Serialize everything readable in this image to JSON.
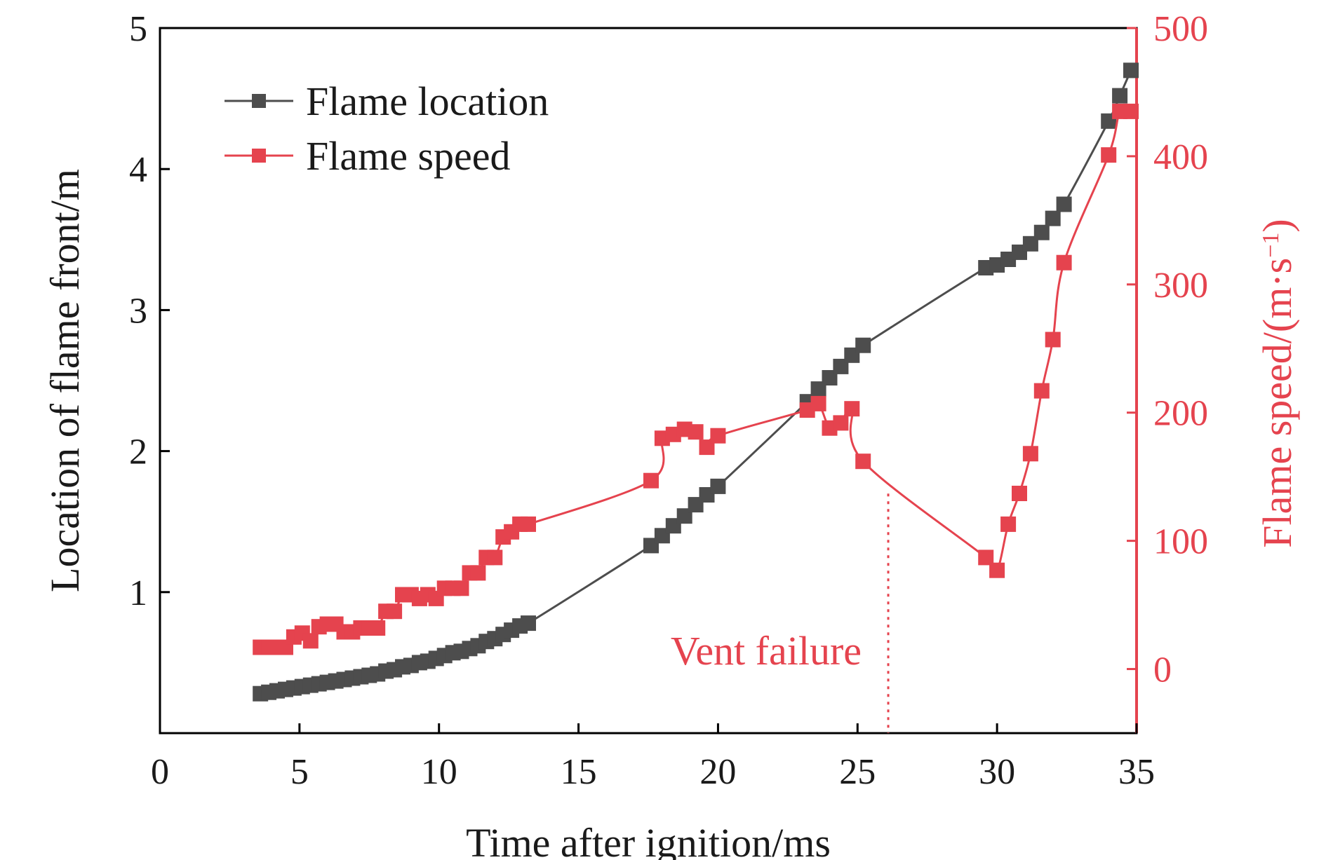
{
  "chart_data": {
    "type": "line",
    "xlabel": "Time after ignition/ms",
    "ylabel_left": "Location of flame front/m",
    "ylabel_right_main": "Flame speed/(m·s",
    "ylabel_right_sup": "−1",
    "ylabel_right_close": ")",
    "xlim": [
      0,
      35
    ],
    "ylim_left": [
      0,
      5
    ],
    "ylim_right": [
      -50,
      500
    ],
    "x_ticks": [
      0,
      5,
      10,
      15,
      20,
      25,
      30,
      35
    ],
    "y_ticks_left": [
      1,
      2,
      3,
      4,
      5
    ],
    "y_ticks_right": [
      0,
      100,
      200,
      300,
      400,
      500
    ],
    "grid": false,
    "legend_placement": "top-left",
    "colors": {
      "location": "#4d4d4d",
      "speed": "#e5434e",
      "axis_left": "#000000",
      "axis_right": "#e5434e"
    },
    "series": [
      {
        "name": "Flame location",
        "axis": "left",
        "x": [
          3.6,
          3.9,
          4.2,
          4.5,
          4.8,
          5.1,
          5.4,
          5.7,
          6.0,
          6.3,
          6.6,
          6.9,
          7.2,
          7.5,
          7.8,
          8.1,
          8.4,
          8.7,
          9.0,
          9.3,
          9.6,
          9.9,
          10.2,
          10.5,
          10.8,
          11.1,
          11.4,
          11.7,
          12.0,
          12.3,
          12.6,
          12.9,
          13.2,
          17.6,
          18.0,
          18.4,
          18.8,
          19.2,
          19.6,
          20.0,
          23.2,
          23.6,
          24.0,
          24.4,
          24.8,
          25.2,
          29.6,
          30.0,
          30.4,
          30.8,
          31.2,
          31.6,
          32.0,
          32.4,
          34.0,
          34.4,
          34.8
        ],
        "y": [
          0.28,
          0.29,
          0.3,
          0.31,
          0.32,
          0.33,
          0.34,
          0.35,
          0.36,
          0.37,
          0.38,
          0.39,
          0.4,
          0.41,
          0.42,
          0.44,
          0.45,
          0.47,
          0.48,
          0.5,
          0.51,
          0.53,
          0.55,
          0.57,
          0.58,
          0.6,
          0.62,
          0.65,
          0.67,
          0.7,
          0.73,
          0.76,
          0.78,
          1.33,
          1.4,
          1.47,
          1.54,
          1.62,
          1.69,
          1.75,
          2.35,
          2.44,
          2.52,
          2.6,
          2.68,
          2.75,
          3.3,
          3.32,
          3.36,
          3.41,
          3.47,
          3.55,
          3.65,
          3.75,
          4.34,
          4.52,
          4.7
        ]
      },
      {
        "name": "Flame speed",
        "axis": "right",
        "x": [
          3.6,
          3.9,
          4.2,
          4.5,
          4.8,
          5.1,
          5.4,
          5.7,
          6.0,
          6.3,
          6.6,
          6.9,
          7.2,
          7.5,
          7.8,
          8.1,
          8.4,
          8.7,
          9.0,
          9.3,
          9.6,
          9.9,
          10.2,
          10.5,
          10.8,
          11.1,
          11.4,
          11.7,
          12.0,
          12.3,
          12.6,
          12.9,
          13.2,
          17.6,
          18.0,
          18.4,
          18.8,
          19.2,
          19.6,
          20.0,
          23.2,
          23.6,
          24.0,
          24.4,
          24.8,
          25.2,
          29.6,
          30.0,
          30.4,
          30.8,
          31.2,
          31.6,
          32.0,
          32.4,
          34.0,
          34.4,
          34.8
        ],
        "y": [
          17,
          17,
          17,
          17,
          25,
          28,
          22,
          33,
          35,
          35,
          29,
          29,
          32,
          32,
          32,
          45,
          45,
          58,
          58,
          55,
          58,
          55,
          63,
          63,
          63,
          75,
          75,
          87,
          87,
          103,
          107,
          113,
          113,
          147,
          180,
          183,
          187,
          185,
          173,
          182,
          202,
          207,
          188,
          192,
          203,
          162,
          87,
          77,
          113,
          137,
          168,
          217,
          257,
          317,
          401,
          435,
          435
        ]
      }
    ],
    "annotations": [
      {
        "text": "Vent failure",
        "x": 26.1
      }
    ]
  }
}
